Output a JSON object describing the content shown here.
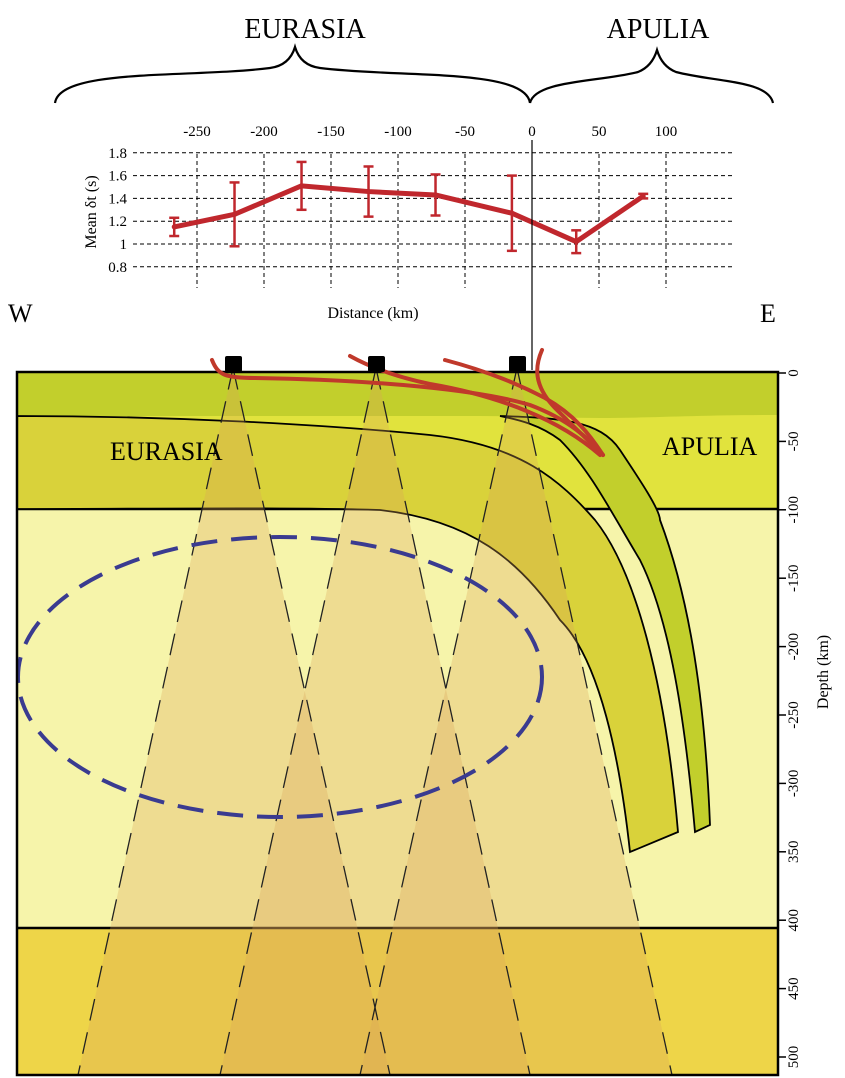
{
  "top_labels": {
    "left_plate": "EURASIA",
    "right_plate": "APULIA"
  },
  "chart_data": {
    "type": "line",
    "title": "",
    "xlabel": "Distance (km)",
    "ylabel": "Mean δt (s)",
    "x_ticks": [
      "-250",
      "-200",
      "-150",
      "-100",
      "-50",
      "0",
      "50",
      "100"
    ],
    "y_ticks": [
      "1.8",
      "1.6",
      "1.4",
      "1.2",
      "1",
      "0.8"
    ],
    "xlim": [
      -300,
      150
    ],
    "ylim": [
      0.7,
      1.85
    ],
    "grid": true,
    "series": [
      {
        "x": [
          -267,
          -222,
          -172,
          -122,
          -72,
          -15,
          33,
          83
        ],
        "y": [
          1.15,
          1.26,
          1.51,
          1.46,
          1.43,
          1.27,
          1.02,
          1.42
        ],
        "err": [
          0.08,
          0.28,
          0.21,
          0.22,
          0.18,
          0.33,
          0.1,
          0.02
        ]
      }
    ],
    "color": "#c0272d"
  },
  "section": {
    "west_label": "W",
    "east_label": "E",
    "left_plate": "EURASIA",
    "right_plate": "APULIA",
    "depth_axis_label": "Depth (km)",
    "depth_ticks": [
      "0",
      "-50",
      "-100",
      "-150",
      "-200",
      "-250",
      "-300",
      "350",
      "400",
      "450",
      "500"
    ],
    "colors": {
      "crust": "#c2cf2c",
      "lithosphere": "#e1e33d",
      "upper_mantle": "#f6f4aa",
      "transition_zone": "#eed548",
      "slab_core": "#d9d23a",
      "cone": "#dca45a",
      "anomaly_outline": "#3a3b90",
      "ray_paths": "#c0392b"
    }
  }
}
